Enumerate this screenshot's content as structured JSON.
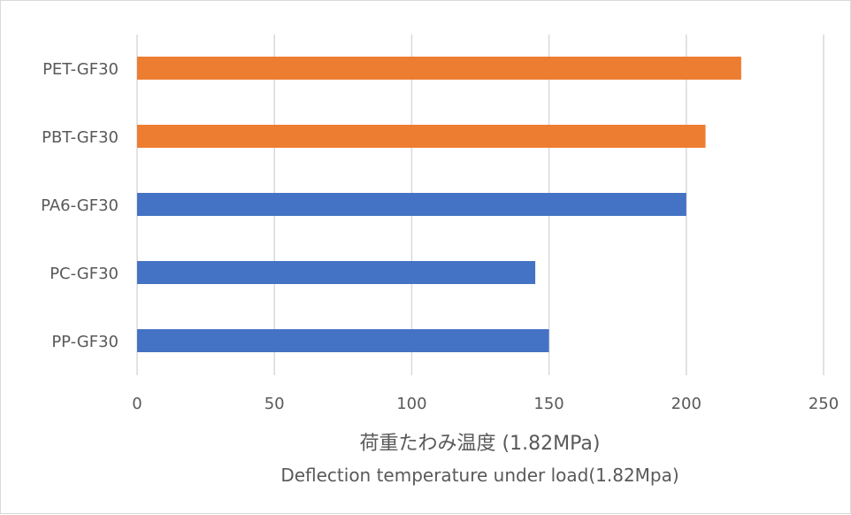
{
  "chart_data": {
    "type": "bar",
    "orientation": "horizontal",
    "categories": [
      "PET-GF30",
      "PBT-GF30",
      "PA6-GF30",
      "PC-GF30",
      "PP-GF30"
    ],
    "values": [
      220,
      207,
      200,
      145,
      150
    ],
    "bar_colors": [
      "#ED7D31",
      "#ED7D31",
      "#4472C4",
      "#4472C4",
      "#4472C4"
    ],
    "xlim": [
      0,
      250
    ],
    "xticks": [
      0,
      50,
      100,
      150,
      200,
      250
    ],
    "xlabel_line1": "荷重たわみ温度 (1.82MPa)",
    "xlabel_line2": "Deflection temperature under load(1.82Mpa)",
    "grid": "vertical",
    "legend": "none"
  }
}
